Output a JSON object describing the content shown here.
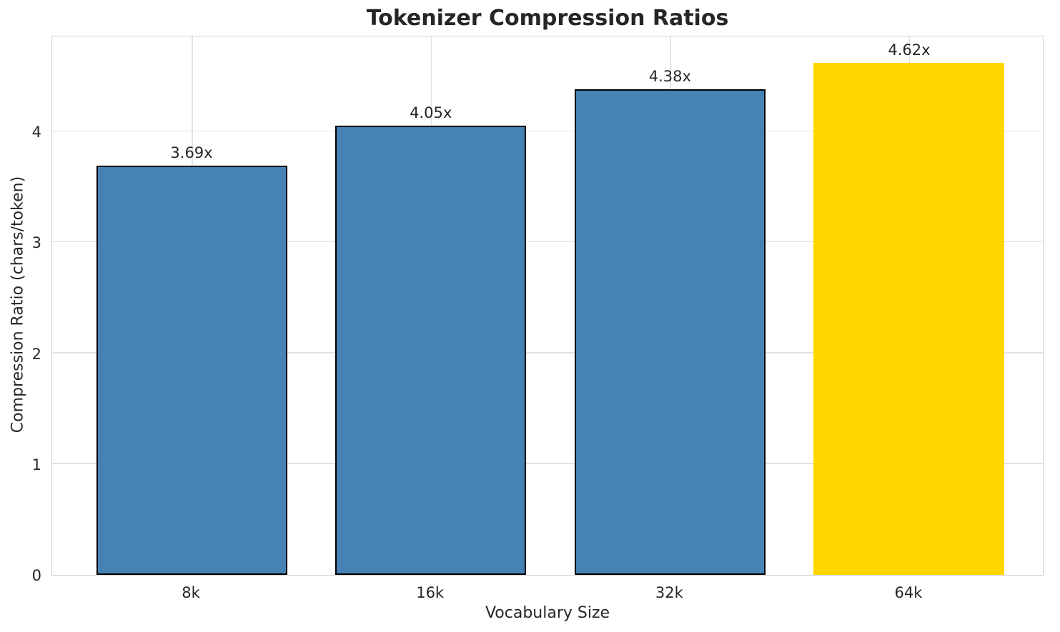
{
  "chart_data": {
    "type": "bar",
    "title": "Tokenizer Compression Ratios",
    "xlabel": "Vocabulary Size",
    "ylabel": "Compression Ratio (chars/token)",
    "categories": [
      "8k",
      "16k",
      "32k",
      "64k"
    ],
    "values": [
      3.69,
      4.05,
      4.38,
      4.62
    ],
    "bar_labels": [
      "3.69x",
      "4.05x",
      "4.38x",
      "4.62x"
    ],
    "yticks": [
      "0",
      "1",
      "2",
      "3",
      "4"
    ],
    "ylim": [
      0,
      4.87
    ],
    "grid": true,
    "legend_position": "none",
    "colors": {
      "bar_fill": [
        "#4682b4",
        "#4682b4",
        "#4682b4",
        "#ffd700"
      ],
      "bar_edge": [
        "#000000",
        "#000000",
        "#000000",
        "#ffd700"
      ],
      "grid_line": "#e2e2e2",
      "spine": "#cfcfcf",
      "text": "#262626",
      "background": "#ffffff"
    }
  }
}
